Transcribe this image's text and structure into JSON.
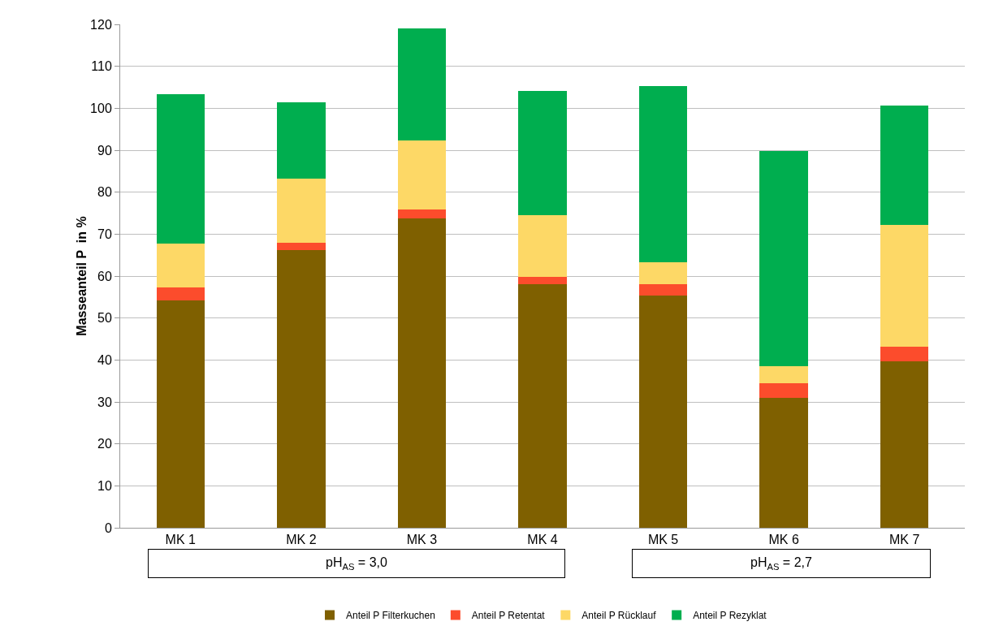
{
  "chart_data": {
    "type": "bar",
    "stacked": true,
    "ylabel": "Masseanteil P  in %",
    "categories": [
      "MK 1",
      "MK 2",
      "MK 3",
      "MK 4",
      "MK 5",
      "MK 6",
      "MK 7"
    ],
    "series": [
      {
        "name": "Anteil P Filterkuchen",
        "color": "#7f6000",
        "values": [
          54.2,
          66.1,
          73.7,
          58.1,
          55.3,
          31.0,
          39.6
        ]
      },
      {
        "name": "Anteil P Retentat",
        "color": "#fc4c2c",
        "values": [
          3.1,
          1.8,
          2.2,
          1.8,
          2.8,
          3.4,
          3.5
        ]
      },
      {
        "name": "Anteil P Rücklauf",
        "color": "#fdd866",
        "values": [
          10.5,
          15.3,
          16.4,
          14.7,
          5.1,
          4.2,
          29.0
        ]
      },
      {
        "name": "Anteil P Rezyklat",
        "color": "#00ae4f",
        "values": [
          35.5,
          18.2,
          26.7,
          29.6,
          42.1,
          51.3,
          28.5
        ]
      }
    ],
    "ylim": [
      0,
      120
    ],
    "yticks": [
      0,
      10,
      20,
      30,
      40,
      50,
      60,
      70,
      80,
      90,
      100,
      110,
      120
    ],
    "grid": "y",
    "legend": "bottom",
    "annotations": [
      "pH$_{AS}$ = 3,0",
      "pH$_{AS}$ = 2,7"
    ]
  }
}
